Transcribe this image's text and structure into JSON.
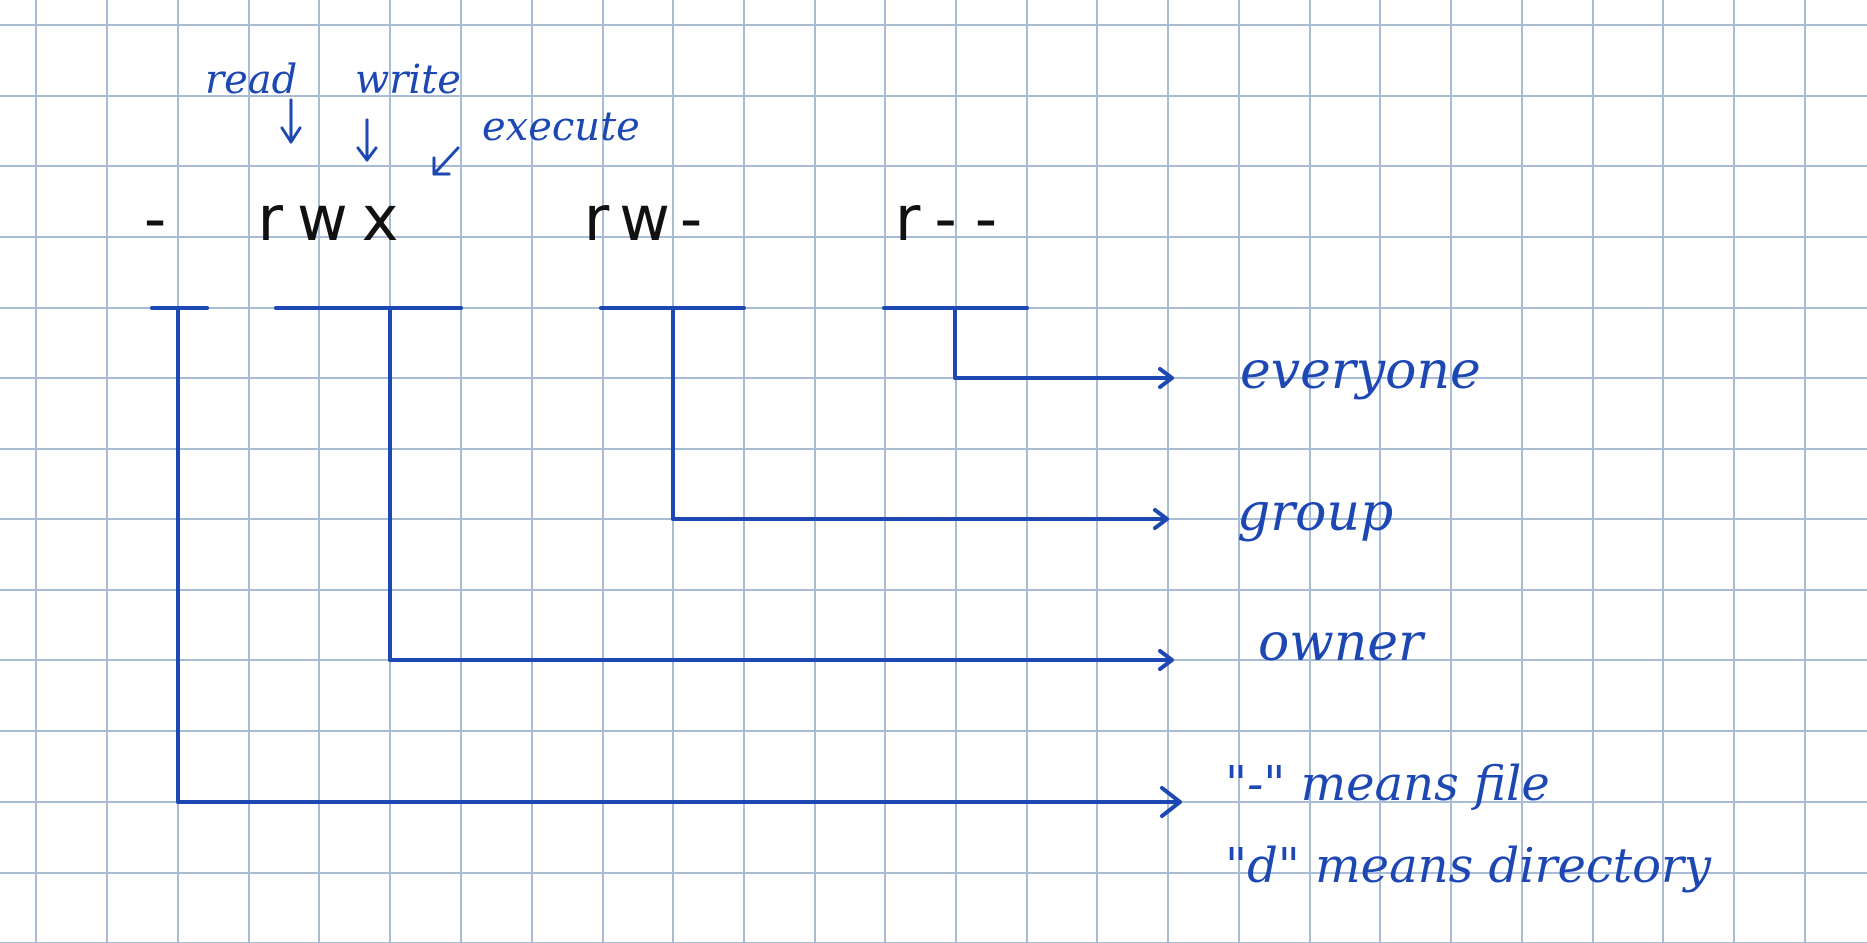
{
  "permission_string": {
    "type_char": "-",
    "owner": "rwx",
    "group": "rw-",
    "others": "r--"
  },
  "annotations": {
    "read": "read",
    "write": "write",
    "execute": "execute"
  },
  "labels": {
    "everyone": "everyone",
    "group": "group",
    "owner": "owner",
    "file_note": "\"-\" means file",
    "directory_note": "\"d\" means directory"
  },
  "colors": {
    "ink_blue": "#1d47b3",
    "ink_black": "#111111",
    "grid": "#a8bcd6"
  }
}
